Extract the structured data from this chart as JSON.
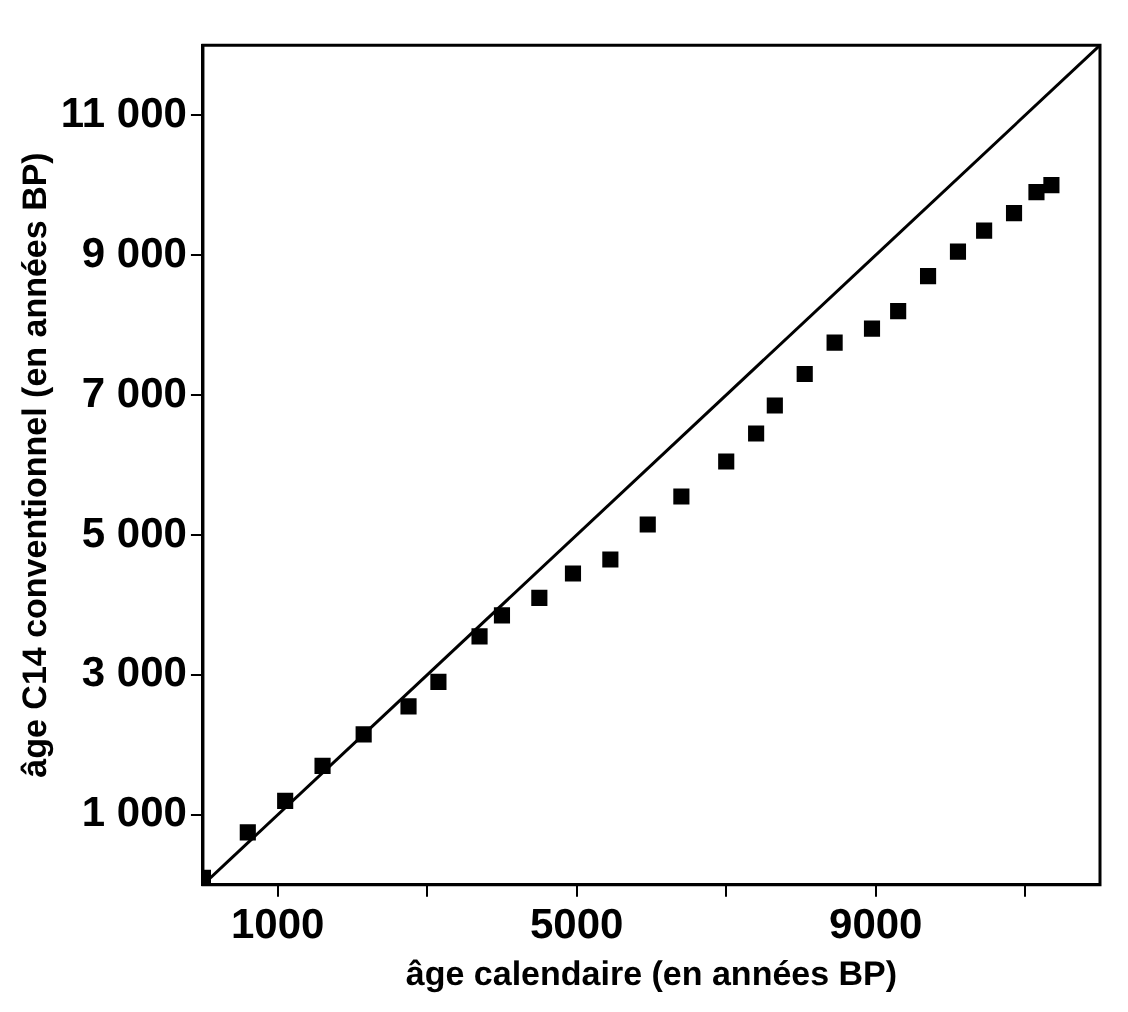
{
  "chart_data": {
    "type": "scatter",
    "xlabel": "âge calendaire (en années BP)",
    "ylabel": "âge C14 conventionnel (en années BP)",
    "xlim": [
      0,
      12000
    ],
    "ylim": [
      0,
      12000
    ],
    "xticks": [
      1000,
      {
        "value": 3000,
        "label": null
      },
      5000,
      {
        "value": 7000,
        "label": null
      },
      9000,
      {
        "value": 11000,
        "label": null
      }
    ],
    "yticks": [
      {
        "value": 1000,
        "label": "1 000"
      },
      {
        "value": 3000,
        "label": "3 000"
      },
      {
        "value": 5000,
        "label": "5 000"
      },
      {
        "value": 7000,
        "label": "7 000"
      },
      {
        "value": 9000,
        "label": "9 000"
      },
      {
        "value": 11000,
        "label": "11 000"
      }
    ],
    "grid": false,
    "legend": false,
    "marker": "square",
    "series": [
      {
        "color": "#000000",
        "x": [
          0,
          600,
          1100,
          1600,
          2150,
          2750,
          3150,
          3700,
          4000,
          4500,
          4950,
          5450,
          5950,
          6400,
          7000,
          7400,
          7650,
          8050,
          8450,
          8950,
          9300,
          9700,
          10100,
          10450,
          10850,
          11150,
          11350
        ],
        "values": [
          100,
          750,
          1200,
          1700,
          2150,
          2550,
          2900,
          3550,
          3850,
          4100,
          4450,
          4650,
          5150,
          5550,
          6050,
          6450,
          6850,
          7300,
          7750,
          7950,
          8200,
          8700,
          9050,
          9350,
          9600,
          9900,
          10000
        ]
      },
      {
        "type": "line",
        "color": "#000000",
        "line_style": "solid",
        "marker": "none",
        "x": [
          0,
          12000
        ],
        "values": [
          0,
          12000
        ]
      }
    ]
  }
}
